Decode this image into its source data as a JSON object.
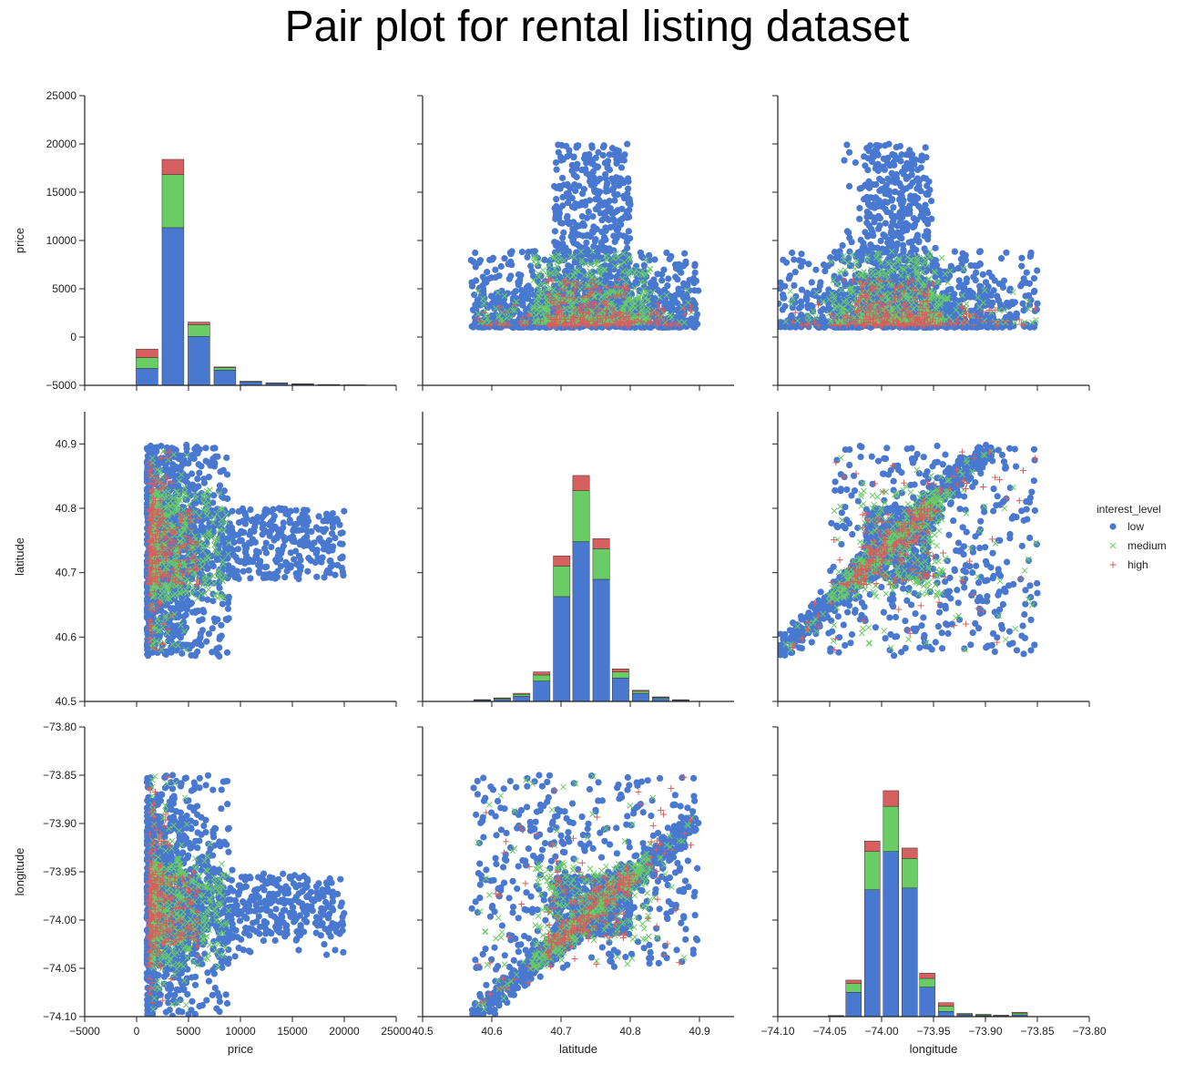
{
  "title": "Pair plot for rental listing dataset",
  "colors": {
    "low": "#4878cf",
    "medium": "#6acc65",
    "high": "#d65f5f",
    "axis": "#222222"
  },
  "legend": {
    "title": "interest_level",
    "items": [
      {
        "key": "low",
        "label": "low",
        "marker": "circle"
      },
      {
        "key": "medium",
        "label": "medium",
        "marker": "x"
      },
      {
        "key": "high",
        "label": "high",
        "marker": "plus"
      }
    ]
  },
  "chart_data": {
    "type": "pairplot",
    "title": "Pair plot for rental listing dataset",
    "hue": "interest_level",
    "variables": [
      {
        "name": "price",
        "label": "price",
        "lim": [
          -5000,
          25000
        ],
        "ticks": [
          -5000,
          0,
          5000,
          10000,
          15000,
          20000,
          25000
        ],
        "tick_labels": [
          "−5000",
          "0",
          "5000",
          "10000",
          "15000",
          "20000",
          "25000"
        ]
      },
      {
        "name": "latitude",
        "label": "latitude",
        "lim": [
          40.5,
          40.95
        ],
        "ticks": [
          40.5,
          40.6,
          40.7,
          40.8,
          40.9
        ],
        "tick_labels": [
          "40.5",
          "40.6",
          "40.7",
          "40.8",
          "40.9"
        ]
      },
      {
        "name": "longitude",
        "label": "longitude",
        "lim": [
          -74.1,
          -73.8
        ],
        "ticks": [
          -74.1,
          -74.05,
          -74.0,
          -73.95,
          -73.9,
          -73.85,
          -73.8
        ],
        "tick_labels": [
          "−74.10",
          "−74.05",
          "−74.00",
          "−73.95",
          "−73.90",
          "−73.85",
          "−73.80"
        ]
      }
    ],
    "histograms": {
      "price": {
        "bin_centers": [
          1000,
          3500,
          6000,
          8500,
          11000,
          13500,
          16000,
          18500,
          21000
        ],
        "bin_width": 2500,
        "series": [
          {
            "name": "low",
            "values": [
              2000,
              18700,
              5800,
              1800,
              400,
              250,
              150,
              80,
              40
            ]
          },
          {
            "name": "medium",
            "values": [
              1300,
              6300,
              1400,
              300,
              60,
              30,
              20,
              10,
              5
            ]
          },
          {
            "name": "high",
            "values": [
              1000,
              1800,
              300,
              80,
              20,
              10,
              5,
              5,
              2
            ]
          }
        ]
      },
      "latitude": {
        "bin_centers": [
          40.586,
          40.615,
          40.643,
          40.672,
          40.701,
          40.729,
          40.758,
          40.786,
          40.815,
          40.844,
          40.873
        ],
        "bin_width": 0.0287,
        "series": [
          {
            "name": "low",
            "values": [
              0.001,
              0.002,
              0.005,
              0.02,
              0.103,
              0.157,
              0.12,
              0.023,
              0.008,
              0.003,
              0.001
            ]
          },
          {
            "name": "medium",
            "values": [
              0.0005,
              0.001,
              0.002,
              0.006,
              0.03,
              0.05,
              0.03,
              0.006,
              0.002,
              0.001,
              0.0005
            ]
          },
          {
            "name": "high",
            "values": [
              0.0003,
              0.0005,
              0.001,
              0.003,
              0.01,
              0.015,
              0.01,
              0.003,
              0.001,
              0.0005,
              0.0002
            ]
          }
        ]
      },
      "longitude": {
        "bin_centers": [
          -74.044,
          -74.027,
          -74.009,
          -73.991,
          -73.973,
          -73.956,
          -73.938,
          -73.92,
          -73.902,
          -73.885,
          -73.867
        ],
        "bin_width": 0.0177,
        "series": [
          {
            "name": "low",
            "values": [
              0.0003,
              0.014,
              0.073,
              0.095,
              0.074,
              0.017,
              0.003,
              0.001,
              0.0005,
              0.0003,
              0.001
            ]
          },
          {
            "name": "medium",
            "values": [
              0.0002,
              0.005,
              0.022,
              0.026,
              0.017,
              0.005,
              0.003,
              0.0005,
              0.0005,
              0.0003,
              0.001
            ]
          },
          {
            "name": "high",
            "values": [
              0.0001,
              0.002,
              0.006,
              0.009,
              0.006,
              0.003,
              0.002,
              0.0003,
              0.0003,
              0.0002,
              0.0005
            ]
          }
        ]
      }
    },
    "scatter_clusters": [
      {
        "level": "low",
        "lat": [
          40.69,
          40.8
        ],
        "lon": [
          -74.015,
          -73.955
        ],
        "price": [
          1500,
          20000
        ],
        "share": 0.32
      },
      {
        "level": "low",
        "lat": [
          40.57,
          40.9
        ],
        "lon": [
          -74.05,
          -73.85
        ],
        "price": [
          1000,
          9000
        ],
        "share": 0.28
      },
      {
        "level": "low",
        "lat": [
          40.6,
          40.88
        ],
        "lon": [
          -73.99,
          -73.88
        ],
        "price": [
          1200,
          5000
        ],
        "share": 0.1
      },
      {
        "level": "medium",
        "lat": [
          40.66,
          40.83
        ],
        "lon": [
          -74.02,
          -73.94
        ],
        "price": [
          1500,
          9000
        ],
        "share": 0.15
      },
      {
        "level": "medium",
        "lat": [
          40.58,
          40.89
        ],
        "lon": [
          -74.05,
          -73.85
        ],
        "price": [
          1500,
          5000
        ],
        "share": 0.05
      },
      {
        "level": "high",
        "lat": [
          40.68,
          40.8
        ],
        "lon": [
          -74.02,
          -73.95
        ],
        "price": [
          1200,
          6000
        ],
        "share": 0.07
      },
      {
        "level": "high",
        "lat": [
          40.58,
          40.89
        ],
        "lon": [
          -74.05,
          -73.85
        ],
        "price": [
          1200,
          3500
        ],
        "share": 0.03
      }
    ]
  }
}
